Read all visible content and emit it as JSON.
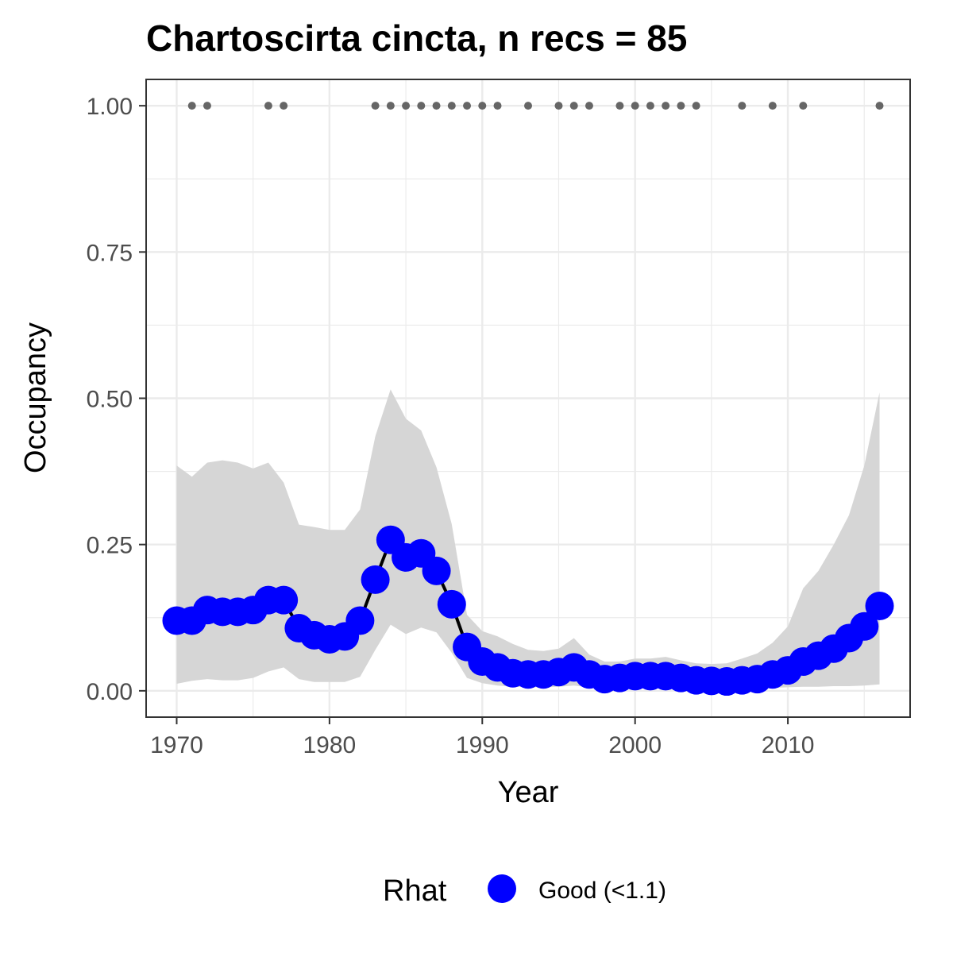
{
  "chart_data": {
    "type": "line",
    "title": "Chartoscirta cincta, n recs = 85",
    "xlabel": "Year",
    "ylabel": "Occupancy",
    "xlim": [
      1968,
      2018
    ],
    "ylim": [
      -0.045,
      1.045
    ],
    "x_ticks": [
      1970,
      1980,
      1990,
      2000,
      2010
    ],
    "x_tick_labels": [
      "1970",
      "1980",
      "1990",
      "2000",
      "2010"
    ],
    "y_ticks": [
      0,
      0.25,
      0.5,
      0.75,
      1
    ],
    "y_tick_labels": [
      "0.00",
      "0.25",
      "0.50",
      "0.75",
      "1.00"
    ],
    "grid": true,
    "legend": {
      "title": "Rhat",
      "position": "bottom",
      "entries": [
        {
          "label": "Good (<1.1)",
          "color": "#0000ff"
        }
      ]
    },
    "colors": {
      "points": "#0000ff",
      "line": "#000000",
      "ribbon": "#d6d6d6",
      "records": "#666666",
      "grid": "#ebebeb",
      "border": "#333333"
    },
    "series": [
      {
        "type": "line",
        "x": [
          1970,
          1971,
          1972,
          1973,
          1974,
          1975,
          1976,
          1977,
          1978,
          1979,
          1980,
          1981,
          1982,
          1983,
          1984,
          1985,
          1986,
          1987,
          1988,
          1989,
          1990,
          1991,
          1992,
          1993,
          1994,
          1995,
          1996,
          1997,
          1998,
          1999,
          2000,
          2001,
          2002,
          2003,
          2004,
          2005,
          2006,
          2007,
          2008,
          2009,
          2010,
          2011,
          2012,
          2013,
          2014,
          2015,
          2016
        ],
        "values": [
          0.12,
          0.12,
          0.138,
          0.135,
          0.135,
          0.138,
          0.155,
          0.155,
          0.107,
          0.095,
          0.088,
          0.093,
          0.12,
          0.19,
          0.258,
          0.228,
          0.235,
          0.205,
          0.148,
          0.075,
          0.05,
          0.04,
          0.03,
          0.028,
          0.028,
          0.032,
          0.04,
          0.028,
          0.02,
          0.022,
          0.025,
          0.025,
          0.025,
          0.022,
          0.018,
          0.017,
          0.016,
          0.018,
          0.02,
          0.028,
          0.035,
          0.05,
          0.06,
          0.072,
          0.09,
          0.11,
          0.145
        ],
        "lower": [
          0.012,
          0.017,
          0.02,
          0.018,
          0.018,
          0.022,
          0.033,
          0.04,
          0.02,
          0.015,
          0.015,
          0.015,
          0.024,
          0.07,
          0.113,
          0.097,
          0.108,
          0.1,
          0.065,
          0.022,
          0.013,
          0.009,
          0.007,
          0.006,
          0.006,
          0.007,
          0.009,
          0.006,
          0.004,
          0.005,
          0.005,
          0.005,
          0.005,
          0.004,
          0.004,
          0.003,
          0.003,
          0.003,
          0.004,
          0.005,
          0.006,
          0.007,
          0.007,
          0.008,
          0.008,
          0.009,
          0.011
        ],
        "upper": [
          0.385,
          0.366,
          0.39,
          0.394,
          0.39,
          0.38,
          0.39,
          0.356,
          0.284,
          0.28,
          0.275,
          0.275,
          0.31,
          0.435,
          0.515,
          0.465,
          0.445,
          0.382,
          0.285,
          0.13,
          0.102,
          0.093,
          0.08,
          0.07,
          0.068,
          0.072,
          0.09,
          0.062,
          0.05,
          0.05,
          0.055,
          0.055,
          0.058,
          0.052,
          0.047,
          0.046,
          0.047,
          0.055,
          0.064,
          0.082,
          0.11,
          0.175,
          0.205,
          0.25,
          0.3,
          0.385,
          0.51
        ]
      },
      {
        "type": "scatter",
        "x": [
          1971,
          1972,
          1976,
          1977,
          1983,
          1984,
          1985,
          1986,
          1987,
          1988,
          1989,
          1990,
          1991,
          1993,
          1995,
          1996,
          1997,
          1999,
          2000,
          2001,
          2002,
          2003,
          2004,
          2007,
          2009,
          2011,
          2016
        ],
        "values": [
          1,
          1,
          1,
          1,
          1,
          1,
          1,
          1,
          1,
          1,
          1,
          1,
          1,
          1,
          1,
          1,
          1,
          1,
          1,
          1,
          1,
          1,
          1,
          1,
          1,
          1,
          1
        ]
      }
    ]
  }
}
